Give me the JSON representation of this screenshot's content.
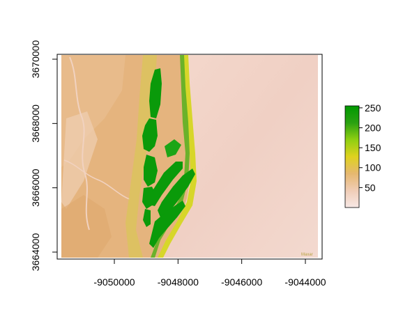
{
  "map": {
    "type": "raster",
    "x_axis": {
      "ticks": [
        {
          "value": -9050000,
          "label": "-9050000"
        },
        {
          "value": -9048000,
          "label": "-9048000"
        },
        {
          "value": -9046000,
          "label": "-9046000"
        },
        {
          "value": -9044000,
          "label": "-9044000"
        }
      ]
    },
    "y_axis": {
      "ticks": [
        {
          "value": 3664000,
          "label": "3664000"
        },
        {
          "value": 3666000,
          "label": "3666000"
        },
        {
          "value": 3668000,
          "label": "3668000"
        },
        {
          "value": 3670000,
          "label": "3670000"
        }
      ]
    },
    "colorbar": {
      "min": 0,
      "max": 255,
      "palette": [
        "#f7e8e6",
        "#f0cdb6",
        "#e6b870",
        "#dfd21f",
        "#8fcf11",
        "#2aa111",
        "#009900"
      ],
      "ticks": [
        {
          "value": 50,
          "label": "50"
        },
        {
          "value": 100,
          "label": "100"
        },
        {
          "value": 150,
          "label": "150"
        },
        {
          "value": 200,
          "label": "200"
        },
        {
          "value": 250,
          "label": "250"
        }
      ]
    },
    "watermark": "Maxar",
    "colors": {
      "sand": "#e3b681",
      "marsh": "#e8b27a",
      "water": "#f2cfc3",
      "beach_yellow": "#dcd72e",
      "vegetation": "#0a9a0a"
    }
  }
}
